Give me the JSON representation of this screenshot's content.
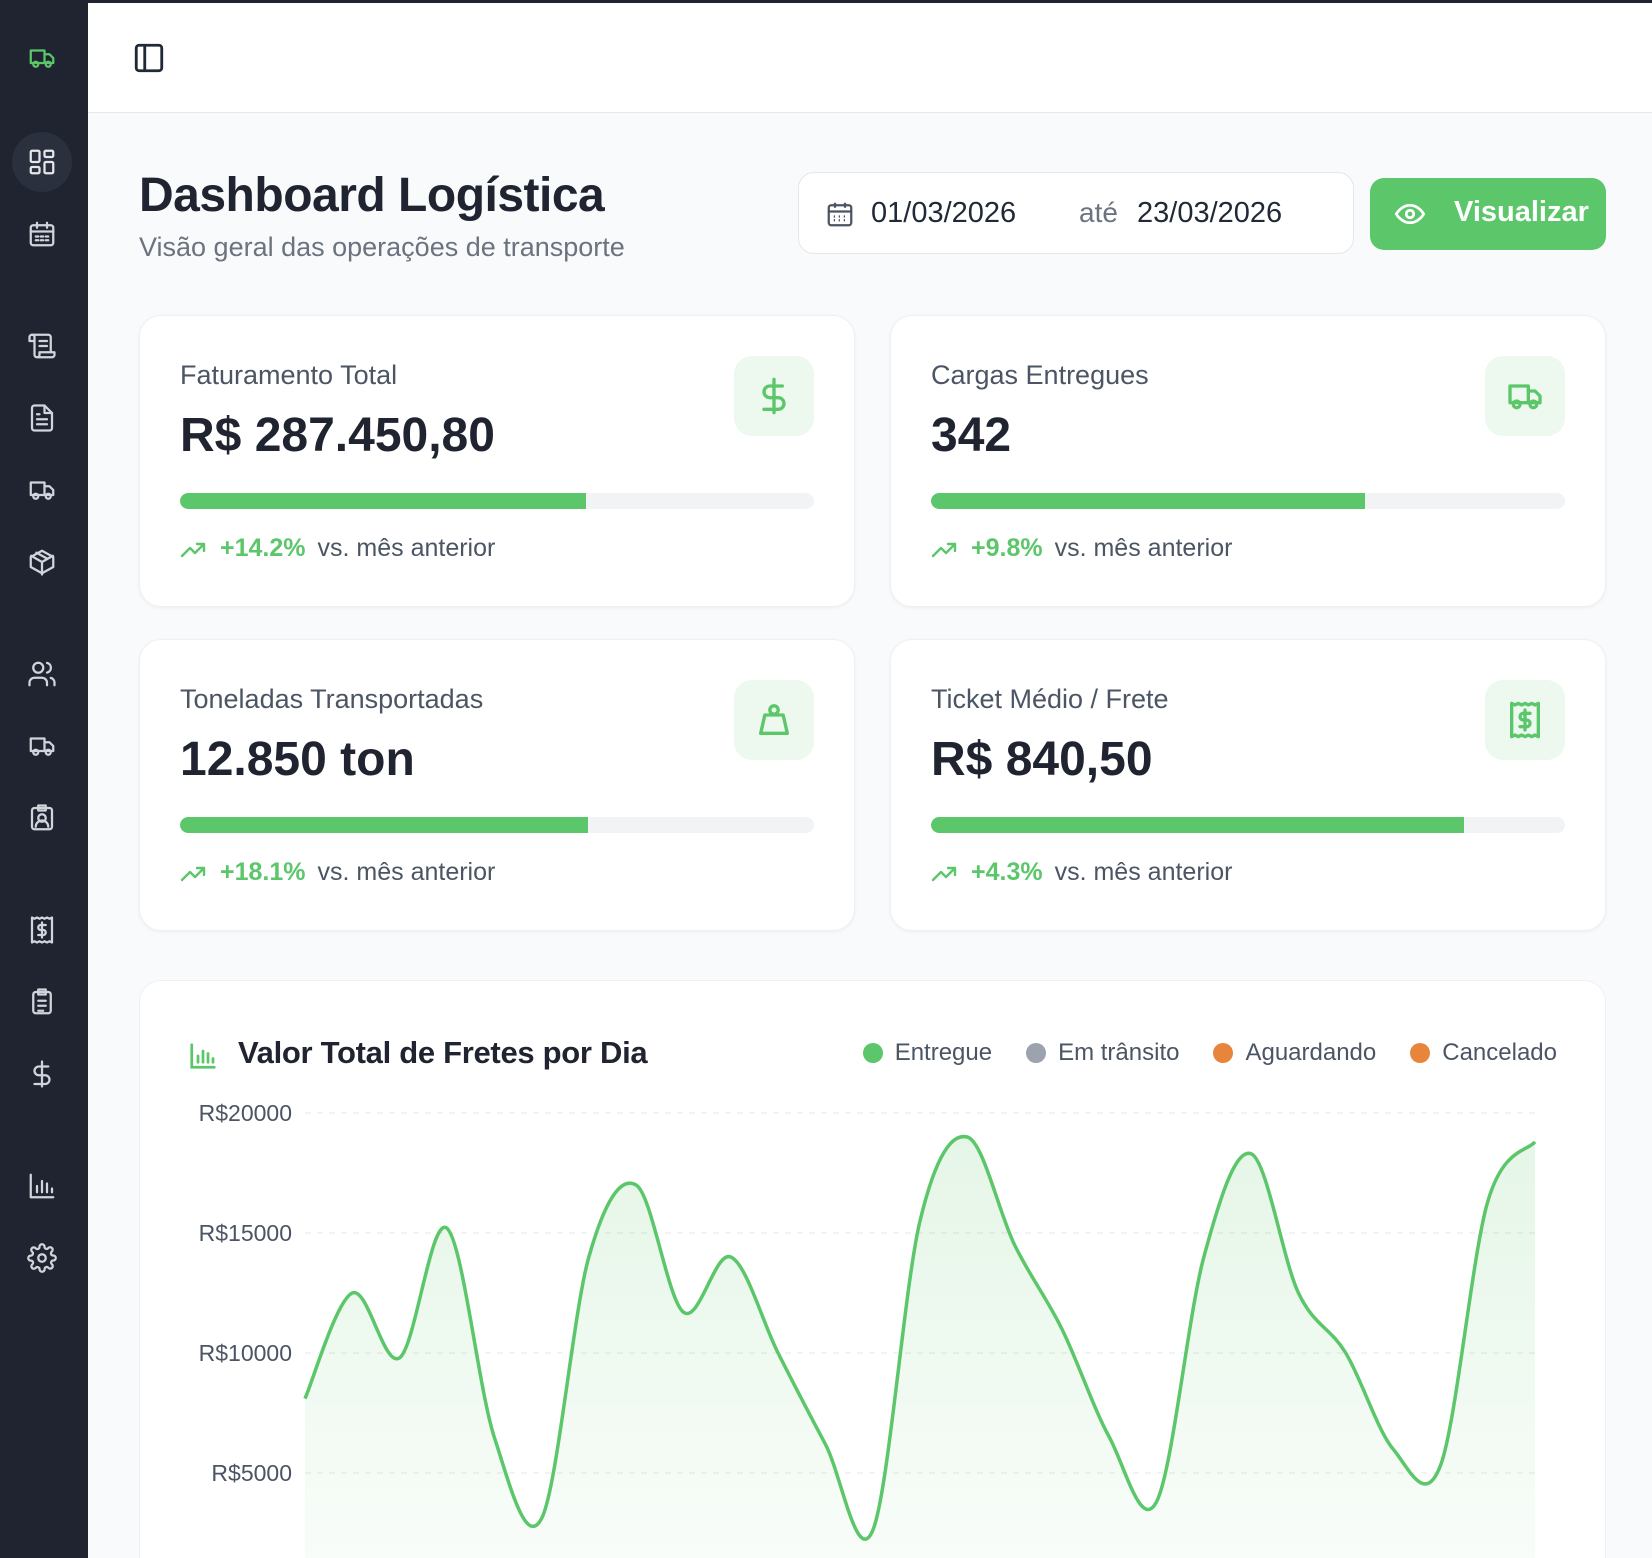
{
  "app": {
    "name": "Dashboard Logística"
  },
  "topbar": {
    "toggle_icon": "sidebar-toggle-icon"
  },
  "sidebar": {
    "icons": [
      "truck-logo-icon",
      "dashboard-grid-icon",
      "calendar-icon",
      "scroll-icon",
      "document-icon",
      "truck-icon",
      "package-icon",
      "users-icon",
      "truck-fleet-icon",
      "driver-badge-icon",
      "receipt-icon",
      "clipboard-icon",
      "dollar-icon",
      "bar-chart-icon",
      "settings-icon"
    ]
  },
  "header": {
    "title": "Dashboard Logística",
    "subtitle": "Visão geral das operações de transporte"
  },
  "date_range": {
    "start": "01/03/2026",
    "separator": "até",
    "end": "23/03/2026"
  },
  "view_button": {
    "label": "Visualizar"
  },
  "colors": {
    "accent": "#5cc66a",
    "sidebar": "#1f2430",
    "transit": "#9ca3af",
    "waiting": "#e8853d",
    "canceled": "#e8853d"
  },
  "cards": [
    {
      "label": "Faturamento Total",
      "value": "R$ 287.450,80",
      "progress": 0.64,
      "change": "+14.2%",
      "comparison": "vs. mês anterior",
      "icon": "dollar-icon"
    },
    {
      "label": "Cargas Entregues",
      "value": "342",
      "progress": 0.685,
      "change": "+9.8%",
      "comparison": "vs. mês anterior",
      "icon": "truck-icon"
    },
    {
      "label": "Toneladas Transportadas",
      "value": "12.850 ton",
      "progress": 0.643,
      "change": "+18.1%",
      "comparison": "vs. mês anterior",
      "icon": "weight-icon"
    },
    {
      "label": "Ticket Médio / Frete",
      "value": "R$ 840,50",
      "progress": 0.84,
      "change": "+4.3%",
      "comparison": "vs. mês anterior",
      "icon": "receipt-icon"
    }
  ],
  "chart": {
    "title": "Valor Total de Fretes por Dia",
    "legend": [
      {
        "label": "Entregue",
        "color": "#5cc66a"
      },
      {
        "label": "Em trânsito",
        "color": "#9ca3af"
      },
      {
        "label": "Aguardando",
        "color": "#e8853d"
      },
      {
        "label": "Cancelado",
        "color": "#e8853d"
      }
    ]
  },
  "chart_data": {
    "type": "area",
    "title": "Valor Total de Fretes por Dia",
    "xlabel": "",
    "ylabel": "",
    "y_ticks": [
      "R$20000",
      "R$15000",
      "R$10000",
      "R$5000"
    ],
    "ylim": [
      0,
      20000
    ],
    "series": [
      {
        "name": "Entregue",
        "values": [
          8100,
          12500,
          9800,
          15200,
          6500,
          3100,
          14000,
          17000,
          11700,
          14000,
          10000,
          6200,
          2600,
          15500,
          19000,
          14500,
          11000,
          6500,
          3800,
          14000,
          18300,
          12500,
          10000,
          6000,
          5300,
          16300,
          18800
        ]
      }
    ]
  }
}
